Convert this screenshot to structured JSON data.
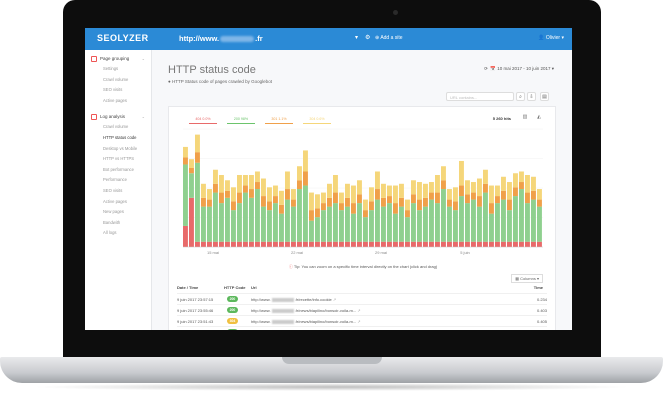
{
  "app": {
    "logo": "SEOLYZER",
    "url_prefix": "http://www.",
    "url_suffix": ".fr",
    "add_site": "Add a site",
    "user": "Olivier"
  },
  "sidebar": {
    "sections": [
      {
        "label": "Page grouping",
        "items": [
          "Settings",
          "Crawl volume",
          "SEO visits",
          "Active pages"
        ]
      },
      {
        "label": "Log analysis",
        "items": [
          "Crawl volume",
          "HTTP status code",
          "Desktop vs Mobile",
          "HTTP vs HTTPS",
          "Bot performance",
          "Performance",
          "SEO visits",
          "Active pages",
          "New pages",
          "Bandwith",
          "All logs"
        ]
      }
    ],
    "active_item": "HTTP status code"
  },
  "page": {
    "title": "HTTP status code",
    "subtitle": "HTTP Status code of pages crawled by Googlebot",
    "date_range": "10 mai 2017 - 10 juin 2017",
    "search_placeholder": "URL contains...",
    "tip": "Tip: You can zoom on a specific time interval directly on the chart (click and drag)",
    "columns_button": "Columns"
  },
  "legend": [
    {
      "label": "404",
      "value": "0.0%",
      "color": "#e86a6a"
    },
    {
      "label": "200",
      "value": "98%",
      "color": "#6cc46c"
    },
    {
      "label": "301",
      "value": "1.1%",
      "color": "#f0a04a"
    },
    {
      "label": "304",
      "value": "0.6%",
      "color": "#f5d67a"
    }
  ],
  "total_hits": "5 260 hits",
  "chart_data": {
    "type": "bar",
    "stacked": true,
    "x_tick_labels": [
      "15 mai",
      "22 mai",
      "29 mai",
      "5 juin"
    ],
    "series": [
      {
        "name": "404",
        "color": "#e86a6a",
        "values": [
          12,
          28,
          3,
          3,
          3,
          3,
          3,
          3,
          3,
          3,
          3,
          3,
          3,
          3,
          3,
          3,
          3,
          3,
          3,
          3,
          3,
          3,
          3,
          3,
          3,
          3,
          3,
          3,
          3,
          3,
          3,
          3,
          3,
          3,
          3,
          3,
          3,
          3,
          3,
          3,
          3,
          3,
          3,
          3,
          3,
          3,
          3,
          3,
          3,
          3,
          3,
          3,
          3,
          3,
          3,
          3,
          3,
          3,
          3,
          3
        ]
      },
      {
        "name": "200",
        "color": "#8fd08f",
        "values": [
          35,
          14,
          45,
          20,
          20,
          28,
          22,
          25,
          18,
          22,
          28,
          25,
          30,
          20,
          18,
          22,
          16,
          24,
          20,
          30,
          32,
          12,
          14,
          18,
          20,
          22,
          18,
          20,
          16,
          22,
          14,
          18,
          24,
          20,
          22,
          16,
          20,
          14,
          22,
          18,
          20,
          24,
          22,
          30,
          20,
          18,
          26,
          22,
          24,
          20,
          28,
          16,
          22,
          24,
          18,
          26,
          30,
          22,
          24,
          20
        ]
      },
      {
        "name": "301",
        "color": "#f0a04a",
        "values": [
          4,
          3,
          6,
          5,
          4,
          5,
          6,
          4,
          5,
          6,
          4,
          5,
          4,
          6,
          5,
          4,
          5,
          6,
          4,
          5,
          8,
          6,
          5,
          4,
          5,
          6,
          4,
          5,
          6,
          5,
          4,
          5,
          6,
          5,
          4,
          6,
          5,
          4,
          5,
          6,
          5,
          4,
          6,
          5,
          4,
          5,
          6,
          5,
          4,
          6,
          5,
          6,
          4,
          5,
          6,
          5,
          4,
          6,
          5,
          4
        ]
      },
      {
        "name": "304",
        "color": "#f5d67a",
        "values": [
          6,
          5,
          10,
          8,
          6,
          8,
          10,
          6,
          8,
          10,
          6,
          8,
          6,
          10,
          8,
          6,
          8,
          10,
          6,
          8,
          12,
          10,
          8,
          6,
          8,
          10,
          6,
          8,
          10,
          8,
          6,
          8,
          10,
          8,
          6,
          10,
          8,
          6,
          8,
          10,
          8,
          6,
          10,
          8,
          6,
          8,
          14,
          8,
          6,
          10,
          8,
          10,
          6,
          8,
          10,
          8,
          6,
          10,
          8,
          6
        ]
      }
    ]
  },
  "table": {
    "headers": [
      "Date / Time",
      "HTTP Code",
      "Url",
      "Time"
    ],
    "rows": [
      {
        "date": "9 juin 2017 23:57:15",
        "code": "200",
        "url_start": "http://www.",
        "url_end": ".fr/recette/info.cookie",
        "time": "0.234"
      },
      {
        "date": "9 juin 2017 23:55:46",
        "code": "200",
        "url_start": "http://www.",
        "url_end": ".fr/news/biapilino/bonsoir-voila-m...",
        "time": "0.403"
      },
      {
        "date": "9 juin 2017 23:51:43",
        "code": "304",
        "url_start": "http://www.",
        "url_end": ".fr/news/biapilino/bonsoir-voila-m...",
        "time": "0.405"
      },
      {
        "date": "9 juin 2017 23:43:57",
        "code": "200",
        "url_start": "http://www.",
        "url_end": ".fr/news/news",
        "time": "0.012"
      },
      {
        "date": "9 juin 2017 23:43:09",
        "code": "304",
        "url_start": "http://www.",
        "url_end": ".fr/news/news",
        "time": "0.61"
      }
    ]
  }
}
